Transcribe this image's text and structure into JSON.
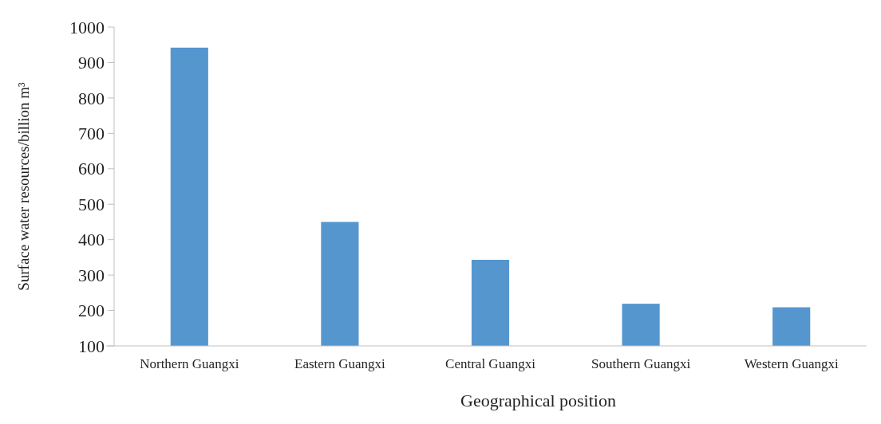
{
  "chart_data": {
    "type": "bar",
    "xlabel": "Geographical position",
    "ylabel": "Surface water resources/billion m³",
    "categories": [
      "Northern Guangxi",
      "Eastern Guangxi",
      "Central Guangxi",
      "Southern Guangxi",
      "Western Guangxi"
    ],
    "values": [
      942,
      450,
      343,
      219,
      209
    ],
    "color": "#5596cf",
    "ylim": [
      100,
      1000
    ],
    "yticks": [
      100,
      200,
      300,
      400,
      500,
      600,
      700,
      800,
      900,
      1000
    ],
    "grid": false
  }
}
